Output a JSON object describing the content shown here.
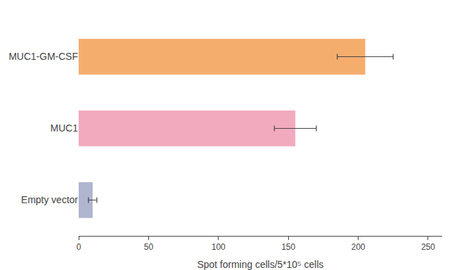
{
  "chart_data": {
    "type": "bar",
    "orientation": "horizontal",
    "categories": [
      "MUC1-GM-CSF",
      "MUC1",
      "Empty vector"
    ],
    "values": [
      205,
      155,
      10
    ],
    "errors": [
      20,
      15,
      3
    ],
    "colors": [
      "#F5AD6E",
      "#F2ABBE",
      "#B0B5D0"
    ],
    "xlabel": "Spot forming cells/5*10⁵ cells",
    "xlim": [
      0,
      260
    ],
    "xticks": [
      0,
      50,
      100,
      150,
      200,
      250
    ],
    "grid": false
  }
}
